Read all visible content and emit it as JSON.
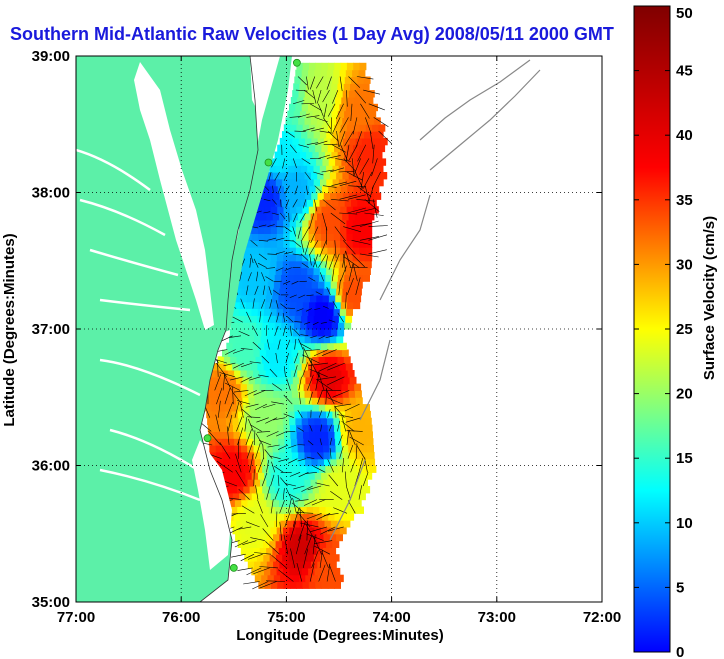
{
  "chart_data": {
    "type": "heatmap",
    "title": "Southern Mid-Atlantic Raw Velocities (1 Day Avg) 2008/05/11 2000 GMT",
    "xlabel": "Longitude (Degrees:Minutes)",
    "ylabel": "Latitude (Degrees:Minutes)",
    "x_ticks": [
      {
        "value": -77,
        "label": "77:00"
      },
      {
        "value": -76,
        "label": "76:00"
      },
      {
        "value": -75,
        "label": "75:00"
      },
      {
        "value": -74,
        "label": "74:00"
      },
      {
        "value": -73,
        "label": "73:00"
      },
      {
        "value": -72,
        "label": "72:00"
      }
    ],
    "y_ticks": [
      {
        "value": 35,
        "label": "35:00"
      },
      {
        "value": 36,
        "label": "36:00"
      },
      {
        "value": 37,
        "label": "37:00"
      },
      {
        "value": 38,
        "label": "38:00"
      },
      {
        "value": 39,
        "label": "39:00"
      }
    ],
    "xlim": [
      -77,
      -72
    ],
    "ylim": [
      35,
      39
    ],
    "grid": true,
    "colorbar": {
      "label": "Surface Velocity (cm/s)",
      "range": [
        0,
        50
      ],
      "ticks": [
        0,
        5,
        10,
        15,
        20,
        25,
        30,
        35,
        40,
        45,
        50
      ],
      "colormap": "jet"
    },
    "land_color": "#5cf0a8",
    "stations": [
      {
        "lon": -74.9,
        "lat": 38.95
      },
      {
        "lon": -75.17,
        "lat": 38.22
      },
      {
        "lon": -75.75,
        "lat": 36.2
      },
      {
        "lon": -75.5,
        "lat": 35.25
      }
    ],
    "velocity_field": [
      {
        "lon": -75.0,
        "lat": 38.7,
        "speed": 22
      },
      {
        "lon": -74.7,
        "lat": 38.7,
        "speed": 28
      },
      {
        "lon": -74.3,
        "lat": 38.6,
        "speed": 38
      },
      {
        "lon": -74.2,
        "lat": 38.3,
        "speed": 42
      },
      {
        "lon": -75.1,
        "lat": 38.3,
        "speed": 18
      },
      {
        "lon": -75.2,
        "lat": 37.95,
        "speed": 8
      },
      {
        "lon": -74.9,
        "lat": 38.0,
        "speed": 15
      },
      {
        "lon": -74.6,
        "lat": 37.8,
        "speed": 40
      },
      {
        "lon": -74.3,
        "lat": 37.75,
        "speed": 44
      },
      {
        "lon": -75.3,
        "lat": 37.4,
        "speed": 16
      },
      {
        "lon": -74.9,
        "lat": 37.3,
        "speed": 10
      },
      {
        "lon": -74.65,
        "lat": 37.1,
        "speed": 6
      },
      {
        "lon": -74.35,
        "lat": 37.25,
        "speed": 40
      },
      {
        "lon": -75.4,
        "lat": 36.85,
        "speed": 22
      },
      {
        "lon": -75.1,
        "lat": 36.8,
        "speed": 18
      },
      {
        "lon": -74.6,
        "lat": 36.65,
        "speed": 45
      },
      {
        "lon": -75.6,
        "lat": 36.55,
        "speed": 38
      },
      {
        "lon": -75.2,
        "lat": 36.35,
        "speed": 26
      },
      {
        "lon": -74.7,
        "lat": 36.2,
        "speed": 8
      },
      {
        "lon": -74.3,
        "lat": 36.25,
        "speed": 35
      },
      {
        "lon": -75.5,
        "lat": 35.95,
        "speed": 44
      },
      {
        "lon": -75.0,
        "lat": 35.9,
        "speed": 20
      },
      {
        "lon": -74.5,
        "lat": 35.85,
        "speed": 30
      },
      {
        "lon": -75.3,
        "lat": 35.6,
        "speed": 30
      },
      {
        "lon": -74.85,
        "lat": 35.4,
        "speed": 46
      },
      {
        "lon": -74.6,
        "lat": 35.25,
        "speed": 40
      }
    ]
  }
}
